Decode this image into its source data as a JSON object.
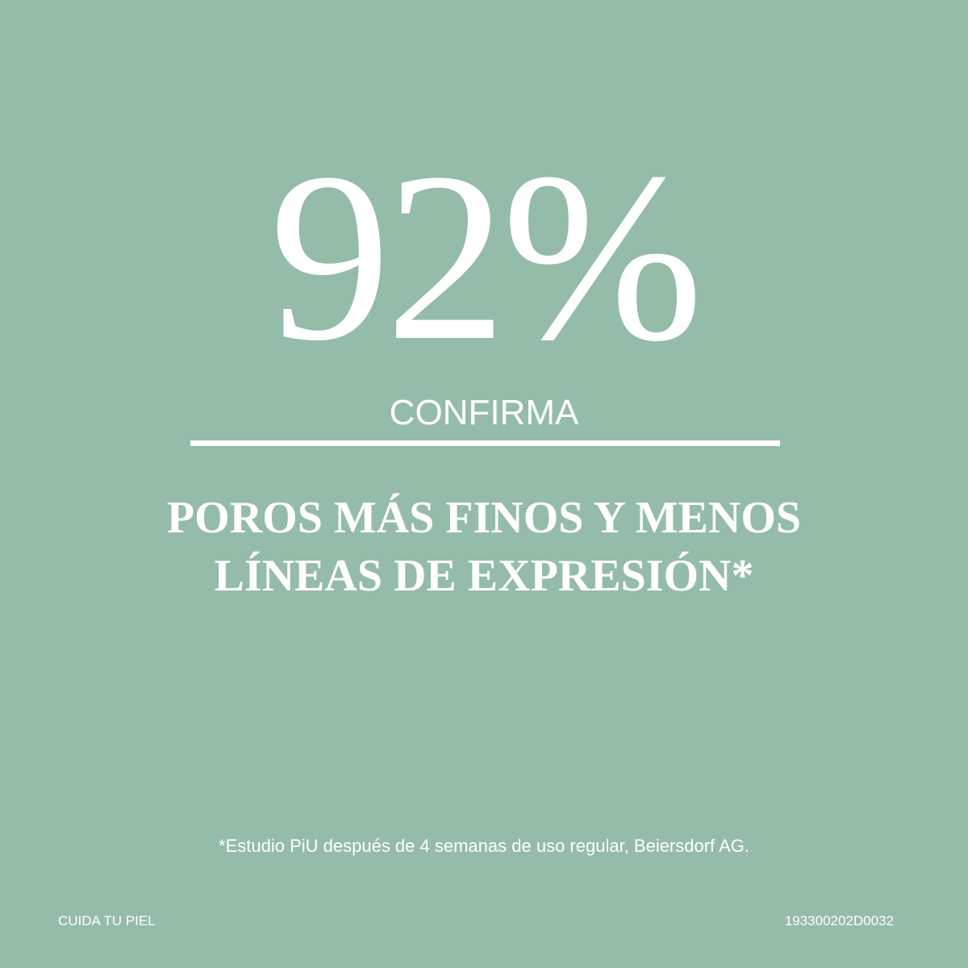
{
  "headline": {
    "value": "92%",
    "subtitle": "CONFIRMA"
  },
  "claim": {
    "line1": "POROS MÁS FINOS Y MENOS",
    "line2": "LÍNEAS DE EXPRESIÓN*"
  },
  "footnote": "*Estudio PiU después de 4 semanas de uso regular, Beiersdorf AG.",
  "footer": {
    "left": "CUIDA TU PIEL",
    "right": "193300202D0032"
  },
  "colors": {
    "background": "#94bca9",
    "text": "#ffffff"
  }
}
